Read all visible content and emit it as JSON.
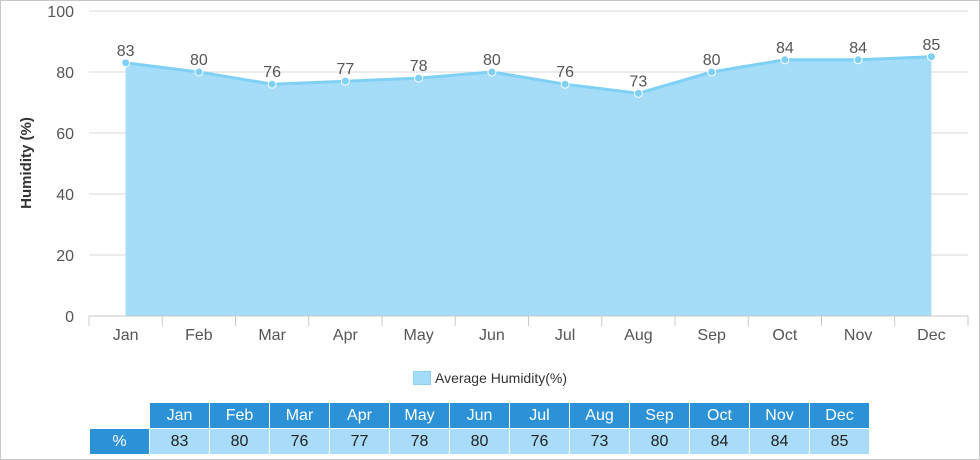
{
  "chart_data": {
    "type": "area",
    "categories": [
      "Jan",
      "Feb",
      "Mar",
      "Apr",
      "May",
      "Jun",
      "Jul",
      "Aug",
      "Sep",
      "Oct",
      "Nov",
      "Dec"
    ],
    "series": [
      {
        "name": "Average Humidity(%)",
        "values": [
          83,
          80,
          76,
          77,
          78,
          80,
          76,
          73,
          80,
          84,
          84,
          85
        ]
      }
    ],
    "ylabel": "Humidity (%)",
    "ylim": [
      0,
      100
    ],
    "yticks": [
      0,
      20,
      40,
      60,
      80,
      100
    ],
    "grid": true,
    "legend_position": "bottom",
    "colors": {
      "fill": "#a5dcf8",
      "line": "#7fd0f5",
      "grid": "#d8d8d8"
    }
  },
  "table": {
    "row_label": "%"
  }
}
